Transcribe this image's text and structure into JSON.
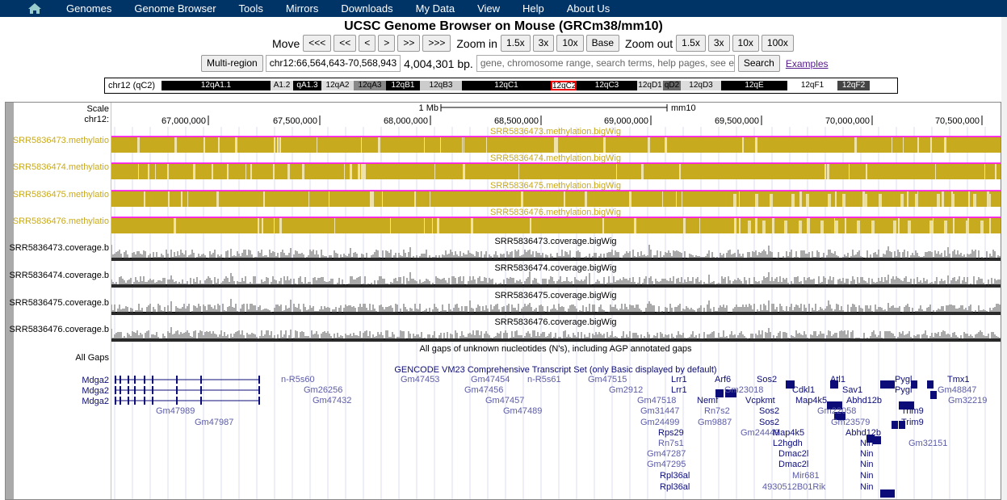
{
  "nav": {
    "items": [
      "Genomes",
      "Genome Browser",
      "Tools",
      "Mirrors",
      "Downloads",
      "My Data",
      "View",
      "Help",
      "About Us"
    ]
  },
  "title": "UCSC Genome Browser on Mouse (GRCm38/mm10)",
  "controls": {
    "move_label": "Move",
    "move_buttons": [
      "<<<",
      "<<",
      "<",
      ">",
      ">>",
      ">>>"
    ],
    "zoom_in_label": "Zoom in",
    "zoom_in_buttons": [
      "1.5x",
      "3x",
      "10x",
      "Base"
    ],
    "zoom_out_label": "Zoom out",
    "zoom_out_buttons": [
      "1.5x",
      "3x",
      "10x",
      "100x"
    ],
    "multi_region": "Multi-region",
    "position": "chr12:66,564,643-70,568,943",
    "size": "4,004,301 bp.",
    "search_placeholder": "gene, chromosome range, search terms, help pages, see exan",
    "search_button": "Search",
    "examples": "Examples"
  },
  "ideogram": {
    "label": "chr12 (qC2)",
    "bands": [
      {
        "name": "12qA1.1",
        "color": "#000",
        "text": "#fff"
      },
      {
        "name": "A1.2",
        "color": "#ddd",
        "text": "#000"
      },
      {
        "name": "qA1.3",
        "color": "#000",
        "text": "#fff"
      },
      {
        "name": "12qA2",
        "color": "#ddd",
        "text": "#000"
      },
      {
        "name": "12qA3",
        "color": "#888",
        "text": "#000"
      },
      {
        "name": "12qB1",
        "color": "#000",
        "text": "#fff"
      },
      {
        "name": "12qB3",
        "color": "#ccc",
        "text": "#000"
      },
      {
        "name": "12qC1",
        "color": "#000",
        "text": "#fff"
      },
      {
        "name": "12qC2",
        "color": "#fff",
        "text": "#000"
      },
      {
        "name": "12qC3",
        "color": "#000",
        "text": "#fff"
      },
      {
        "name": "12qD1",
        "color": "#ddd",
        "text": "#000"
      },
      {
        "name": "qD2",
        "color": "#666",
        "text": "#000"
      },
      {
        "name": "12qD3",
        "color": "#ddd",
        "text": "#000"
      },
      {
        "name": "12qE",
        "color": "#000",
        "text": "#fff"
      },
      {
        "name": "12qF1",
        "color": "#fff",
        "text": "#000"
      },
      {
        "name": "12qF2",
        "color": "#444",
        "text": "#fff"
      }
    ]
  },
  "scale": {
    "scale_label": "Scale",
    "chrom_label": "chr12:",
    "ruler_label": "1 Mb",
    "assembly": "mm10",
    "ticks": [
      "67,000,000",
      "67,500,000",
      "68,000,000",
      "68,500,000",
      "69,000,000",
      "69,500,000",
      "70,000,000",
      "70,500,000"
    ]
  },
  "tracks": {
    "methylation": [
      {
        "label": "SRR5836473.methylatio",
        "title": "SRR5836473.methylation.bigWig"
      },
      {
        "label": "SRR5836474.methylatio",
        "title": "SRR5836474.methylation.bigWig"
      },
      {
        "label": "SRR5836475.methylatio",
        "title": "SRR5836475.methylation.bigWig"
      },
      {
        "label": "SRR5836476.methylatio",
        "title": "SRR5836476.methylation.bigWig"
      }
    ],
    "coverage": [
      {
        "label": "SRR5836473.coverage.b",
        "title": "SRR5836473.coverage.bigWig"
      },
      {
        "label": "SRR5836474.coverage.b",
        "title": "SRR5836474.coverage.bigWig"
      },
      {
        "label": "SRR5836475.coverage.b",
        "title": "SRR5836475.coverage.bigWig"
      },
      {
        "label": "SRR5836476.coverage.b",
        "title": "SRR5836476.coverage.bigWig"
      }
    ],
    "gaps_label": "All Gaps",
    "gaps_title": "All gaps of unknown nucleotides (N's), including AGP annotated gaps",
    "gencode_title": "GENCODE VM23 Comprehensive Transcript Set (only Basic displayed by default)",
    "mdga_labels": [
      "Mdga2",
      "Mdga2",
      "Mdga2"
    ]
  },
  "colors": {
    "nav_bg": "#003366",
    "methylation": "#c8aa1e",
    "methylation_line": "#ff00ff",
    "gene": "#0c0c78"
  },
  "genes": [
    {
      "name": "n-R5s60",
      "l": 348,
      "t": 464,
      "light": true
    },
    {
      "name": "Gm26256",
      "l": 376,
      "t": 477,
      "light": true
    },
    {
      "name": "Gm47432",
      "l": 387,
      "t": 490,
      "light": true
    },
    {
      "name": "Gm47989",
      "l": 193,
      "t": 503,
      "light": true
    },
    {
      "name": "Gm47987",
      "l": 241,
      "t": 517,
      "light": true
    },
    {
      "name": "Gm47453",
      "l": 496,
      "t": 464,
      "light": true
    },
    {
      "name": "Gm47454",
      "l": 583,
      "t": 464,
      "light": true
    },
    {
      "name": "n-R5s61",
      "l": 653,
      "t": 464,
      "light": true
    },
    {
      "name": "Gm47515",
      "l": 728,
      "t": 464,
      "light": true
    },
    {
      "name": "Gm47456",
      "l": 575,
      "t": 477,
      "light": true
    },
    {
      "name": "Gm47457",
      "l": 601,
      "t": 490,
      "light": true
    },
    {
      "name": "Gm47489",
      "l": 623,
      "t": 503,
      "light": true
    },
    {
      "name": "Gm2912",
      "l": 754,
      "t": 477,
      "light": true
    },
    {
      "name": "Lrr1",
      "l": 831,
      "t": 464,
      "light": false
    },
    {
      "name": "Lrr1",
      "l": 831,
      "t": 477,
      "light": false
    },
    {
      "name": "Gm47518",
      "l": 789,
      "t": 490,
      "light": true
    },
    {
      "name": "Gm31447",
      "l": 793,
      "t": 503,
      "light": true
    },
    {
      "name": "Gm24499",
      "l": 793,
      "t": 517,
      "light": true
    },
    {
      "name": "Rps29",
      "l": 815,
      "t": 530,
      "light": false
    },
    {
      "name": "Rn7s1",
      "l": 815,
      "t": 543,
      "light": true
    },
    {
      "name": "Gm47287",
      "l": 801,
      "t": 556,
      "light": true
    },
    {
      "name": "Gm47295",
      "l": 801,
      "t": 569,
      "light": true
    },
    {
      "name": "Rpl36al",
      "l": 817,
      "t": 583,
      "light": false
    },
    {
      "name": "Rpl36al",
      "l": 817,
      "t": 597,
      "light": false
    },
    {
      "name": "Arf6",
      "l": 885,
      "t": 464,
      "light": false
    },
    {
      "name": "Nemf",
      "l": 863,
      "t": 490,
      "light": false
    },
    {
      "name": "Gm23018",
      "l": 897,
      "t": 477,
      "light": true
    },
    {
      "name": "Rn7s2",
      "l": 872,
      "t": 503,
      "light": true
    },
    {
      "name": "Gm9887",
      "l": 864,
      "t": 517,
      "light": true
    },
    {
      "name": "Gm24449",
      "l": 917,
      "t": 530,
      "light": true
    },
    {
      "name": "Sos2",
      "l": 937,
      "t": 464,
      "light": false
    },
    {
      "name": "Vcpkmt",
      "l": 923,
      "t": 490,
      "light": false
    },
    {
      "name": "Sos2",
      "l": 940,
      "t": 503,
      "light": false
    },
    {
      "name": "Sos2",
      "l": 940,
      "t": 517,
      "light": false
    },
    {
      "name": "Cdkl1",
      "l": 981,
      "t": 477,
      "light": false
    },
    {
      "name": "Map4k5",
      "l": 985,
      "t": 490,
      "light": false
    },
    {
      "name": "Map4k5",
      "l": 957,
      "t": 530,
      "light": false
    },
    {
      "name": "L2hgdh",
      "l": 957,
      "t": 543,
      "light": false
    },
    {
      "name": "Dmac2l",
      "l": 964,
      "t": 556,
      "light": false
    },
    {
      "name": "Dmac2l",
      "l": 964,
      "t": 569,
      "light": false
    },
    {
      "name": "Mir681",
      "l": 981,
      "t": 583,
      "light": true
    },
    {
      "name": "4930512B01Rik",
      "l": 944,
      "t": 597,
      "light": true
    },
    {
      "name": "Gm22058",
      "l": 1012,
      "t": 503,
      "light": true
    },
    {
      "name": "Gm23579",
      "l": 1029,
      "t": 517,
      "light": true
    },
    {
      "name": "Atl1",
      "l": 1028,
      "t": 464,
      "light": false
    },
    {
      "name": "Sav1",
      "l": 1043,
      "t": 477,
      "light": false
    },
    {
      "name": "Abhd12b",
      "l": 1048,
      "t": 490,
      "light": false
    },
    {
      "name": "Abhd12b",
      "l": 1047,
      "t": 530,
      "light": false
    },
    {
      "name": "Nin",
      "l": 1065,
      "t": 543,
      "light": false
    },
    {
      "name": "Nin",
      "l": 1065,
      "t": 556,
      "light": false
    },
    {
      "name": "Nin",
      "l": 1065,
      "t": 569,
      "light": false
    },
    {
      "name": "Nin",
      "l": 1065,
      "t": 583,
      "light": false
    },
    {
      "name": "Nin",
      "l": 1065,
      "t": 597,
      "light": false
    },
    {
      "name": "Pygl",
      "l": 1108,
      "t": 464,
      "light": false
    },
    {
      "name": "Pygl",
      "l": 1108,
      "t": 477,
      "light": false
    },
    {
      "name": "Trim9",
      "l": 1116,
      "t": 503,
      "light": false
    },
    {
      "name": "Trim9",
      "l": 1116,
      "t": 517,
      "light": false
    },
    {
      "name": "Gm32151",
      "l": 1125,
      "t": 543,
      "light": true
    },
    {
      "name": "Tmx1",
      "l": 1173,
      "t": 464,
      "light": false
    },
    {
      "name": "Gm48847",
      "l": 1161,
      "t": 477,
      "light": true
    },
    {
      "name": "Gm32219",
      "l": 1174,
      "t": 490,
      "light": true
    }
  ]
}
